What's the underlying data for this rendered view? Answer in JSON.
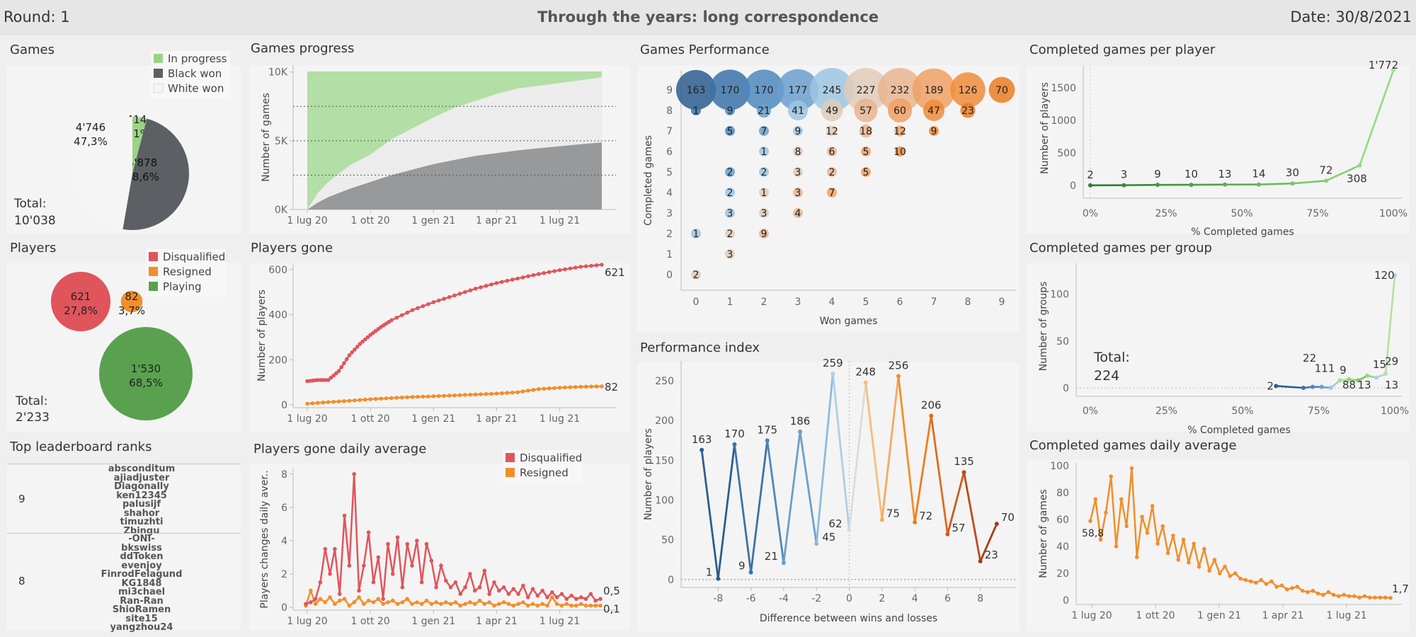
{
  "header": {
    "round": "Round: 1",
    "title": "Through the years: long correspondence",
    "date": "Date: 30/8/2021"
  },
  "colors": {
    "inprogress": "#9bd386",
    "black": "#5c5f63",
    "white": "#f4f4f4",
    "disq": "#e0555c",
    "resigned": "#f28e2b",
    "playing": "#59a14f"
  },
  "games": {
    "title": "Games",
    "total_label": "Total:",
    "total_value": "10'038",
    "legend": [
      "In progress",
      "Black won",
      "White won"
    ],
    "slices": [
      {
        "name": "In progress",
        "value": 414,
        "label1": "414",
        "label2": "4,1%"
      },
      {
        "name": "Black won",
        "value": 4878,
        "label1": "4'878",
        "label2": "48,6%"
      },
      {
        "name": "White won",
        "value": 4746,
        "label1": "4'746",
        "label2": "47,3%"
      }
    ]
  },
  "players": {
    "title": "Players",
    "total_label": "Total:",
    "total_value": "2'233",
    "legend": [
      "Disqualified",
      "Resigned",
      "Playing"
    ],
    "bubbles": [
      {
        "name": "Disqualified",
        "value": 621,
        "label1": "621",
        "label2": "27,8%"
      },
      {
        "name": "Resigned",
        "value": 82,
        "label1": "82",
        "label2": "3,7%"
      },
      {
        "name": "Playing",
        "value": 1530,
        "label1": "1'530",
        "label2": "68,5%"
      }
    ]
  },
  "leaderboard": {
    "title": "Top leaderboard ranks",
    "groups": [
      {
        "rank": "9",
        "names": [
          "absconditum",
          "ajiadjuster",
          "Diagonally",
          "ken12345",
          "palusijf",
          "shahor",
          "timuzhti",
          "Zbingu"
        ]
      },
      {
        "rank": "8",
        "names": [
          "-ONI-",
          "bkswiss",
          "ddToken",
          "evenjoy",
          "FinrodFelagund",
          "KG1848",
          "mi3chael",
          "Ran-Ran",
          "ShioRamen",
          "site15",
          "yangzhou24"
        ]
      }
    ]
  },
  "chart_data": [
    {
      "id": "games_progress",
      "type": "area",
      "title": "Games progress",
      "ylabel": "Number of games",
      "x_ticks": [
        "1 lug 20",
        "1 ott 20",
        "1 gen 21",
        "1 apr 21",
        "1 lug 21"
      ],
      "y_ticks": [
        "0K",
        "5K",
        "10K"
      ],
      "ylim": [
        0,
        10500
      ],
      "x_months": [
        0,
        15
      ],
      "series": [
        {
          "name": "Black won",
          "x": [
            0,
            0.5,
            1,
            2,
            3,
            4,
            5,
            6,
            7,
            8,
            9,
            10,
            11,
            12,
            13,
            14
          ],
          "values": [
            0,
            500,
            900,
            1500,
            2000,
            2500,
            2900,
            3300,
            3600,
            3900,
            4100,
            4300,
            4450,
            4600,
            4750,
            4878
          ]
        },
        {
          "name": "White won",
          "x": [
            0,
            0.5,
            1,
            2,
            3,
            4,
            5,
            6,
            7,
            8,
            9,
            10,
            11,
            12,
            13,
            14
          ],
          "values": [
            0,
            1200,
            2000,
            3200,
            4000,
            5100,
            5900,
            6700,
            7400,
            7900,
            8400,
            8800,
            9000,
            9200,
            9400,
            9624
          ]
        },
        {
          "name": "In progress",
          "x": [
            0,
            0.05,
            14
          ],
          "values": [
            10038,
            10038,
            10038
          ]
        }
      ],
      "ref_lines": [
        7500,
        5000,
        2500
      ]
    },
    {
      "id": "players_gone",
      "type": "line",
      "title": "Players gone",
      "ylabel": "Number of players",
      "x_ticks": [
        "1 lug 20",
        "1 ott 20",
        "1 gen 21",
        "1 apr 21",
        "1 lug 21"
      ],
      "y_ticks": [
        "0",
        "200",
        "400",
        "600"
      ],
      "ylim": [
        0,
        640
      ],
      "series": [
        {
          "name": "Disqualified",
          "end_label": "621",
          "x": [
            0,
            0.5,
            1,
            1.5,
            2,
            2.5,
            3,
            3.5,
            4,
            5,
            6,
            7,
            8,
            9,
            10,
            11,
            12,
            13,
            14
          ],
          "values": [
            105,
            110,
            110,
            150,
            220,
            270,
            310,
            345,
            375,
            420,
            455,
            485,
            515,
            540,
            560,
            580,
            597,
            612,
            621
          ]
        },
        {
          "name": "Resigned",
          "end_label": "82",
          "x": [
            0,
            1,
            2,
            3,
            4,
            5,
            6,
            7,
            8,
            9,
            10,
            11,
            12,
            13,
            14
          ],
          "values": [
            5,
            12,
            18,
            25,
            30,
            35,
            38,
            42,
            46,
            50,
            56,
            70,
            76,
            80,
            82
          ]
        }
      ]
    },
    {
      "id": "players_gone_daily",
      "type": "line",
      "title": "Players gone daily average",
      "ylabel": "Players changes daily aver..",
      "x_ticks": [
        "1 lug 20",
        "1 ott 20",
        "1 gen 21",
        "1 apr 21",
        "1 lug 21"
      ],
      "y_ticks": [
        "0",
        "2",
        "4",
        "6",
        "8"
      ],
      "ylim": [
        0,
        8.5
      ],
      "legend": [
        "Disqualified",
        "Resigned"
      ],
      "series": [
        {
          "name": "Disqualified",
          "end_label": "0,5",
          "values": [
            0.2,
            0.3,
            0.5,
            1.5,
            3.5,
            2.0,
            3.5,
            0.8,
            5.5,
            2.5,
            8.0,
            1.0,
            2.5,
            4.5,
            1.5,
            3.0,
            0.5,
            3.8,
            2.0,
            4.2,
            1.2,
            3.8,
            2.5,
            4.0,
            1.5,
            3.8,
            2.8,
            1.2,
            2.5,
            1.6,
            1.2,
            1.5,
            0.8,
            1.2,
            2.0,
            1.0,
            1.2,
            2.2,
            0.8,
            1.5,
            1.0,
            1.2,
            0.8,
            1.1,
            0.8,
            1.3,
            0.6,
            1.1,
            0.7,
            1.0,
            0.6,
            0.9,
            0.6,
            0.8,
            0.5,
            0.7,
            0.5,
            0.6,
            0.5,
            0.8,
            0.4,
            0.5
          ]
        },
        {
          "name": "Resigned",
          "end_label": "0,1",
          "values": [
            0.1,
            1.0,
            0.2,
            0.5,
            0.3,
            0.6,
            0.2,
            0.4,
            0.5,
            0.1,
            0.3,
            0.6,
            0.2,
            0.4,
            0.3,
            0.5,
            0.2,
            0.3,
            0.4,
            0.2,
            0.3,
            0.5,
            0.2,
            0.3,
            0.2,
            0.4,
            0.2,
            0.3,
            0.2,
            0.3,
            0.2,
            0.3,
            0.1,
            0.2,
            0.3,
            0.2,
            0.4,
            0.2,
            0.3,
            0.1,
            0.2,
            0.3,
            0.2,
            0.1,
            0.2,
            0.3,
            0.1,
            0.2,
            0.1,
            0.2,
            0.1,
            0.6,
            0.2,
            0.1,
            0.2,
            0.1,
            0.1,
            0.2,
            0.1,
            0.1,
            0.1,
            0.1
          ]
        }
      ]
    },
    {
      "id": "games_performance",
      "type": "scatter",
      "title": "Games Performance",
      "xlabel": "Won games",
      "ylabel": "Completed games",
      "x_ticks": [
        "0",
        "1",
        "2",
        "3",
        "4",
        "5",
        "6",
        "7",
        "8",
        "9"
      ],
      "y_ticks": [
        "0",
        "1",
        "2",
        "3",
        "4",
        "5",
        "6",
        "7",
        "8",
        "9"
      ],
      "points": [
        {
          "x": 0,
          "y": 9,
          "v": 163
        },
        {
          "x": 1,
          "y": 9,
          "v": 170
        },
        {
          "x": 2,
          "y": 9,
          "v": 170
        },
        {
          "x": 3,
          "y": 9,
          "v": 177
        },
        {
          "x": 4,
          "y": 9,
          "v": 245
        },
        {
          "x": 5,
          "y": 9,
          "v": 227
        },
        {
          "x": 6,
          "y": 9,
          "v": 232
        },
        {
          "x": 7,
          "y": 9,
          "v": 189
        },
        {
          "x": 8,
          "y": 9,
          "v": 126
        },
        {
          "x": 9,
          "y": 9,
          "v": 70
        },
        {
          "x": 0,
          "y": 8,
          "v": 1
        },
        {
          "x": 1,
          "y": 8,
          "v": 9
        },
        {
          "x": 2,
          "y": 8,
          "v": 21
        },
        {
          "x": 3,
          "y": 8,
          "v": 41
        },
        {
          "x": 4,
          "y": 8,
          "v": 49
        },
        {
          "x": 5,
          "y": 8,
          "v": 57
        },
        {
          "x": 6,
          "y": 8,
          "v": 60
        },
        {
          "x": 7,
          "y": 8,
          "v": 47
        },
        {
          "x": 8,
          "y": 8,
          "v": 23
        },
        {
          "x": 1,
          "y": 7,
          "v": 5
        },
        {
          "x": 2,
          "y": 7,
          "v": 7
        },
        {
          "x": 3,
          "y": 7,
          "v": 9
        },
        {
          "x": 4,
          "y": 7,
          "v": 12
        },
        {
          "x": 5,
          "y": 7,
          "v": 18
        },
        {
          "x": 6,
          "y": 7,
          "v": 12
        },
        {
          "x": 7,
          "y": 7,
          "v": 9
        },
        {
          "x": 2,
          "y": 6,
          "v": 1
        },
        {
          "x": 3,
          "y": 6,
          "v": 8
        },
        {
          "x": 4,
          "y": 6,
          "v": 6
        },
        {
          "x": 5,
          "y": 6,
          "v": 5
        },
        {
          "x": 6,
          "y": 6,
          "v": 10
        },
        {
          "x": 1,
          "y": 5,
          "v": 2
        },
        {
          "x": 2,
          "y": 5,
          "v": 2
        },
        {
          "x": 3,
          "y": 5,
          "v": 3
        },
        {
          "x": 4,
          "y": 5,
          "v": 2
        },
        {
          "x": 5,
          "y": 5,
          "v": 5
        },
        {
          "x": 1,
          "y": 4,
          "v": 2
        },
        {
          "x": 2,
          "y": 4,
          "v": 1
        },
        {
          "x": 3,
          "y": 4,
          "v": 3
        },
        {
          "x": 4,
          "y": 4,
          "v": 7
        },
        {
          "x": 1,
          "y": 3,
          "v": 3
        },
        {
          "x": 2,
          "y": 3,
          "v": 3
        },
        {
          "x": 3,
          "y": 3,
          "v": 4
        },
        {
          "x": 0,
          "y": 2,
          "v": 1
        },
        {
          "x": 1,
          "y": 2,
          "v": 2
        },
        {
          "x": 2,
          "y": 2,
          "v": 9
        },
        {
          "x": 1,
          "y": 1,
          "v": 3
        },
        {
          "x": 0,
          "y": 0,
          "v": 2
        }
      ]
    },
    {
      "id": "performance_index",
      "type": "line",
      "title": "Performance index",
      "xlabel": "Difference between wins and losses",
      "ylabel": "Number of players",
      "x_ticks": [
        "-8",
        "-6",
        "-4",
        "-2",
        "0",
        "2",
        "4",
        "6",
        "8"
      ],
      "y_ticks": [
        "0",
        "50",
        "100",
        "150",
        "200",
        "250"
      ],
      "xlim": [
        -10,
        10
      ],
      "ylim": [
        -10,
        275
      ],
      "points": [
        {
          "x": -9,
          "y": 163,
          "color": "#2c5d8f"
        },
        {
          "x": -8,
          "y": 1,
          "color": "#2c5d8f"
        },
        {
          "x": -7,
          "y": 170,
          "color": "#3b72a8"
        },
        {
          "x": -6,
          "y": 9,
          "color": "#3b72a8"
        },
        {
          "x": -5,
          "y": 175,
          "color": "#4e88bd"
        },
        {
          "x": -4,
          "y": 21,
          "color": "#6a9fcc"
        },
        {
          "x": -3,
          "y": 186,
          "color": "#6a9fcc"
        },
        {
          "x": -2,
          "y": 45,
          "color": "#8dbbdc"
        },
        {
          "x": -1,
          "y": 259,
          "color": "#aecfe6"
        },
        {
          "x": 0,
          "y": 62,
          "color": "#dcdcdc"
        },
        {
          "x": 1,
          "y": 248,
          "color": "#f8bd7a"
        },
        {
          "x": 2,
          "y": 75,
          "color": "#f8a95e"
        },
        {
          "x": 3,
          "y": 256,
          "color": "#f28e2b"
        },
        {
          "x": 4,
          "y": 72,
          "color": "#ea7d22"
        },
        {
          "x": 5,
          "y": 206,
          "color": "#df6b1e"
        },
        {
          "x": 6,
          "y": 57,
          "color": "#d05a1c"
        },
        {
          "x": 7,
          "y": 135,
          "color": "#be4a1a"
        },
        {
          "x": 8,
          "y": 23,
          "color": "#a93b18"
        },
        {
          "x": 9,
          "y": 70,
          "color": "#a93b18"
        }
      ]
    },
    {
      "id": "completed_per_player",
      "type": "line",
      "title": "Completed games per player",
      "xlabel": "% Completed games",
      "ylabel": "Number of players",
      "x_ticks": [
        "0%",
        "25%",
        "50%",
        "75%",
        "100%"
      ],
      "y_ticks": [
        "0",
        "500",
        "1000",
        "1500"
      ],
      "ylim": [
        0,
        1850
      ],
      "points": [
        {
          "x": 0,
          "y": 2,
          "label": "2"
        },
        {
          "x": 11.1,
          "y": 3,
          "label": "3"
        },
        {
          "x": 22.2,
          "y": 9,
          "label": "9"
        },
        {
          "x": 33.3,
          "y": 10,
          "label": "10"
        },
        {
          "x": 44.4,
          "y": 13,
          "label": "13"
        },
        {
          "x": 55.6,
          "y": 14,
          "label": "14"
        },
        {
          "x": 66.7,
          "y": 30,
          "label": "30"
        },
        {
          "x": 77.8,
          "y": 72,
          "label": "72"
        },
        {
          "x": 88.9,
          "y": 308,
          "label": "308"
        },
        {
          "x": 100,
          "y": 1772,
          "label": "1'772"
        }
      ]
    },
    {
      "id": "completed_per_group",
      "type": "line",
      "title": "Completed games per group",
      "xlabel": "% Completed games",
      "ylabel": "Number of groups",
      "total_label": "Total:",
      "total_value": "224",
      "x_ticks": [
        "0%",
        "25%",
        "50%",
        "75%",
        "100%"
      ],
      "y_ticks": [
        "0",
        "50",
        "100"
      ],
      "ylim": [
        0,
        130
      ],
      "points": [
        {
          "x": 61,
          "y": 2
        },
        {
          "x": 64
        },
        {
          "x": 67
        },
        {
          "x": 70,
          "y": 0
        },
        {
          "x": 73,
          "y": 1
        },
        {
          "x": 76,
          "y": 1
        },
        {
          "x": 79,
          "y": 0
        },
        {
          "x": 82,
          "y": 8
        },
        {
          "x": 85,
          "y": 9
        },
        {
          "x": 88,
          "y": 8
        },
        {
          "x": 91,
          "y": 13
        },
        {
          "x": 94,
          "y": 11
        },
        {
          "x": 97,
          "y": 15
        },
        {
          "x": 100,
          "y": 120
        }
      ],
      "labels": [
        {
          "x": 61,
          "y": 2,
          "text": "2"
        },
        {
          "x": 72,
          "y": 22,
          "text": "22"
        },
        {
          "x": 77,
          "y": 11,
          "text": "111"
        },
        {
          "x": 83,
          "y": 9,
          "text": "9"
        },
        {
          "x": 85,
          "y": 0,
          "text": "88"
        },
        {
          "x": 90,
          "y": 13,
          "text": "13"
        },
        {
          "x": 95,
          "y": 15,
          "text": "15"
        },
        {
          "x": 99,
          "y": 29,
          "text": "29"
        },
        {
          "x": 99,
          "y": 0,
          "text": "13"
        },
        {
          "x": 98,
          "y": 120,
          "text": "120"
        }
      ]
    },
    {
      "id": "completed_daily",
      "type": "line",
      "title": "Completed games daily average",
      "ylabel": "Number of games",
      "x_ticks": [
        "1 lug 20",
        "1 ott 20",
        "1 gen 21",
        "1 apr 21",
        "1 lug 21"
      ],
      "y_ticks": [
        "0",
        "20",
        "40",
        "60",
        "80",
        "100"
      ],
      "ylim": [
        0,
        102
      ],
      "first_label": "58,8",
      "end_label": "1,7",
      "values": [
        58.8,
        75,
        45,
        65,
        92,
        40,
        75,
        55,
        98,
        32,
        62,
        50,
        70,
        42,
        55,
        35,
        48,
        30,
        45,
        28,
        42,
        25,
        38,
        22,
        30,
        20,
        25,
        18,
        20,
        16,
        15,
        14,
        13,
        15,
        12,
        14,
        10,
        11,
        8,
        9,
        10,
        7,
        6,
        7,
        5,
        4,
        6,
        4,
        3,
        4,
        3,
        3,
        2,
        3,
        2,
        2,
        2,
        2,
        1.7
      ]
    }
  ]
}
